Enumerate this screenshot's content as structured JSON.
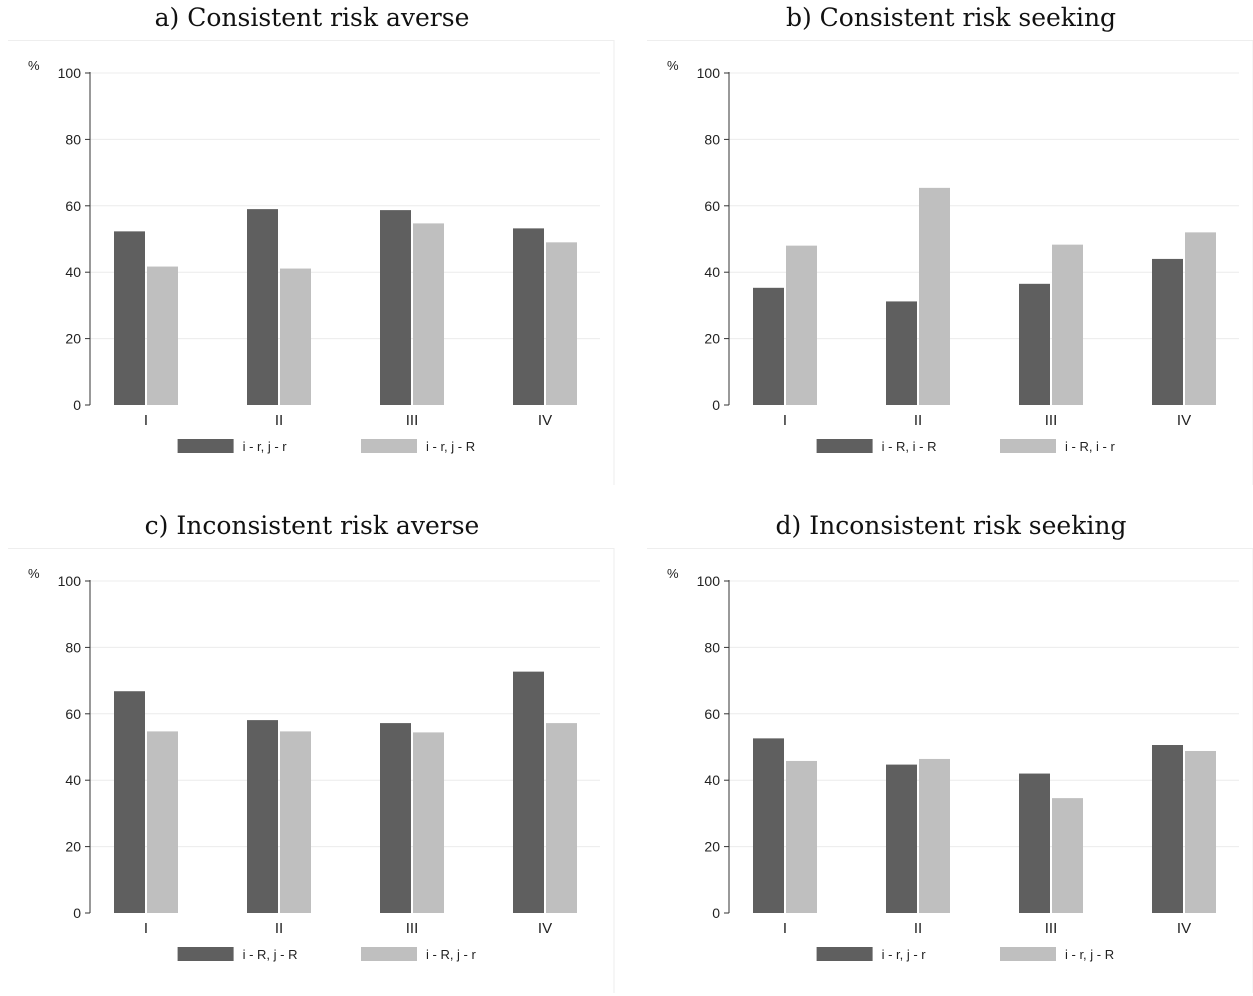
{
  "figure": {
    "colors": {
      "dark": "#5f5f5f",
      "light": "#bfbfbf",
      "grid": "#ececec",
      "axis": "#333333"
    }
  },
  "chart_data": [
    {
      "type": "bar",
      "title": "a) Consistent risk averse",
      "ylabel": "%",
      "xlabel": "",
      "ylim": [
        0,
        100
      ],
      "yticks": [
        "0",
        "20",
        "40",
        "60",
        "80",
        "100"
      ],
      "categories": [
        "I",
        "II",
        "III",
        "IV"
      ],
      "legend_position": "bottom",
      "series": [
        {
          "name": "i - r, j - r",
          "color": "#5f5f5f",
          "values": [
            52.3,
            59.0,
            58.7,
            53.2
          ]
        },
        {
          "name": "i - r, j - R",
          "color": "#bfbfbf",
          "values": [
            41.7,
            41.1,
            54.7,
            49.0
          ]
        }
      ]
    },
    {
      "type": "bar",
      "title": "b) Consistent risk seeking",
      "ylabel": "%",
      "xlabel": "",
      "ylim": [
        0,
        100
      ],
      "yticks": [
        "0",
        "20",
        "40",
        "60",
        "80",
        "100"
      ],
      "categories": [
        "I",
        "II",
        "III",
        "IV"
      ],
      "legend_position": "bottom",
      "series": [
        {
          "name": "i - R, i - R",
          "color": "#5f5f5f",
          "values": [
            35.3,
            31.2,
            36.5,
            44.0
          ]
        },
        {
          "name": "i - R, i - r",
          "color": "#bfbfbf",
          "values": [
            48.0,
            65.4,
            48.3,
            52.0
          ]
        }
      ]
    },
    {
      "type": "bar",
      "title": "c) Inconsistent risk averse",
      "ylabel": "%",
      "xlabel": "",
      "ylim": [
        0,
        100
      ],
      "yticks": [
        "0",
        "20",
        "40",
        "60",
        "80",
        "100"
      ],
      "categories": [
        "I",
        "II",
        "III",
        "IV"
      ],
      "legend_position": "bottom",
      "series": [
        {
          "name": "i - R, j - R",
          "color": "#5f5f5f",
          "values": [
            66.8,
            58.1,
            57.2,
            72.7
          ]
        },
        {
          "name": "i - R, j - r",
          "color": "#bfbfbf",
          "values": [
            54.7,
            54.7,
            54.4,
            57.2
          ]
        }
      ]
    },
    {
      "type": "bar",
      "title": "d) Inconsistent risk seeking",
      "ylabel": "%",
      "xlabel": "",
      "ylim": [
        0,
        100
      ],
      "yticks": [
        "0",
        "20",
        "40",
        "60",
        "80",
        "100"
      ],
      "categories": [
        "I",
        "II",
        "III",
        "IV"
      ],
      "legend_position": "bottom",
      "series": [
        {
          "name": "i - r, j - r",
          "color": "#5f5f5f",
          "values": [
            52.6,
            44.7,
            42.0,
            50.6
          ]
        },
        {
          "name": "i - r, j - R",
          "color": "#bfbfbf",
          "values": [
            45.8,
            46.4,
            34.6,
            48.8
          ]
        }
      ]
    }
  ]
}
